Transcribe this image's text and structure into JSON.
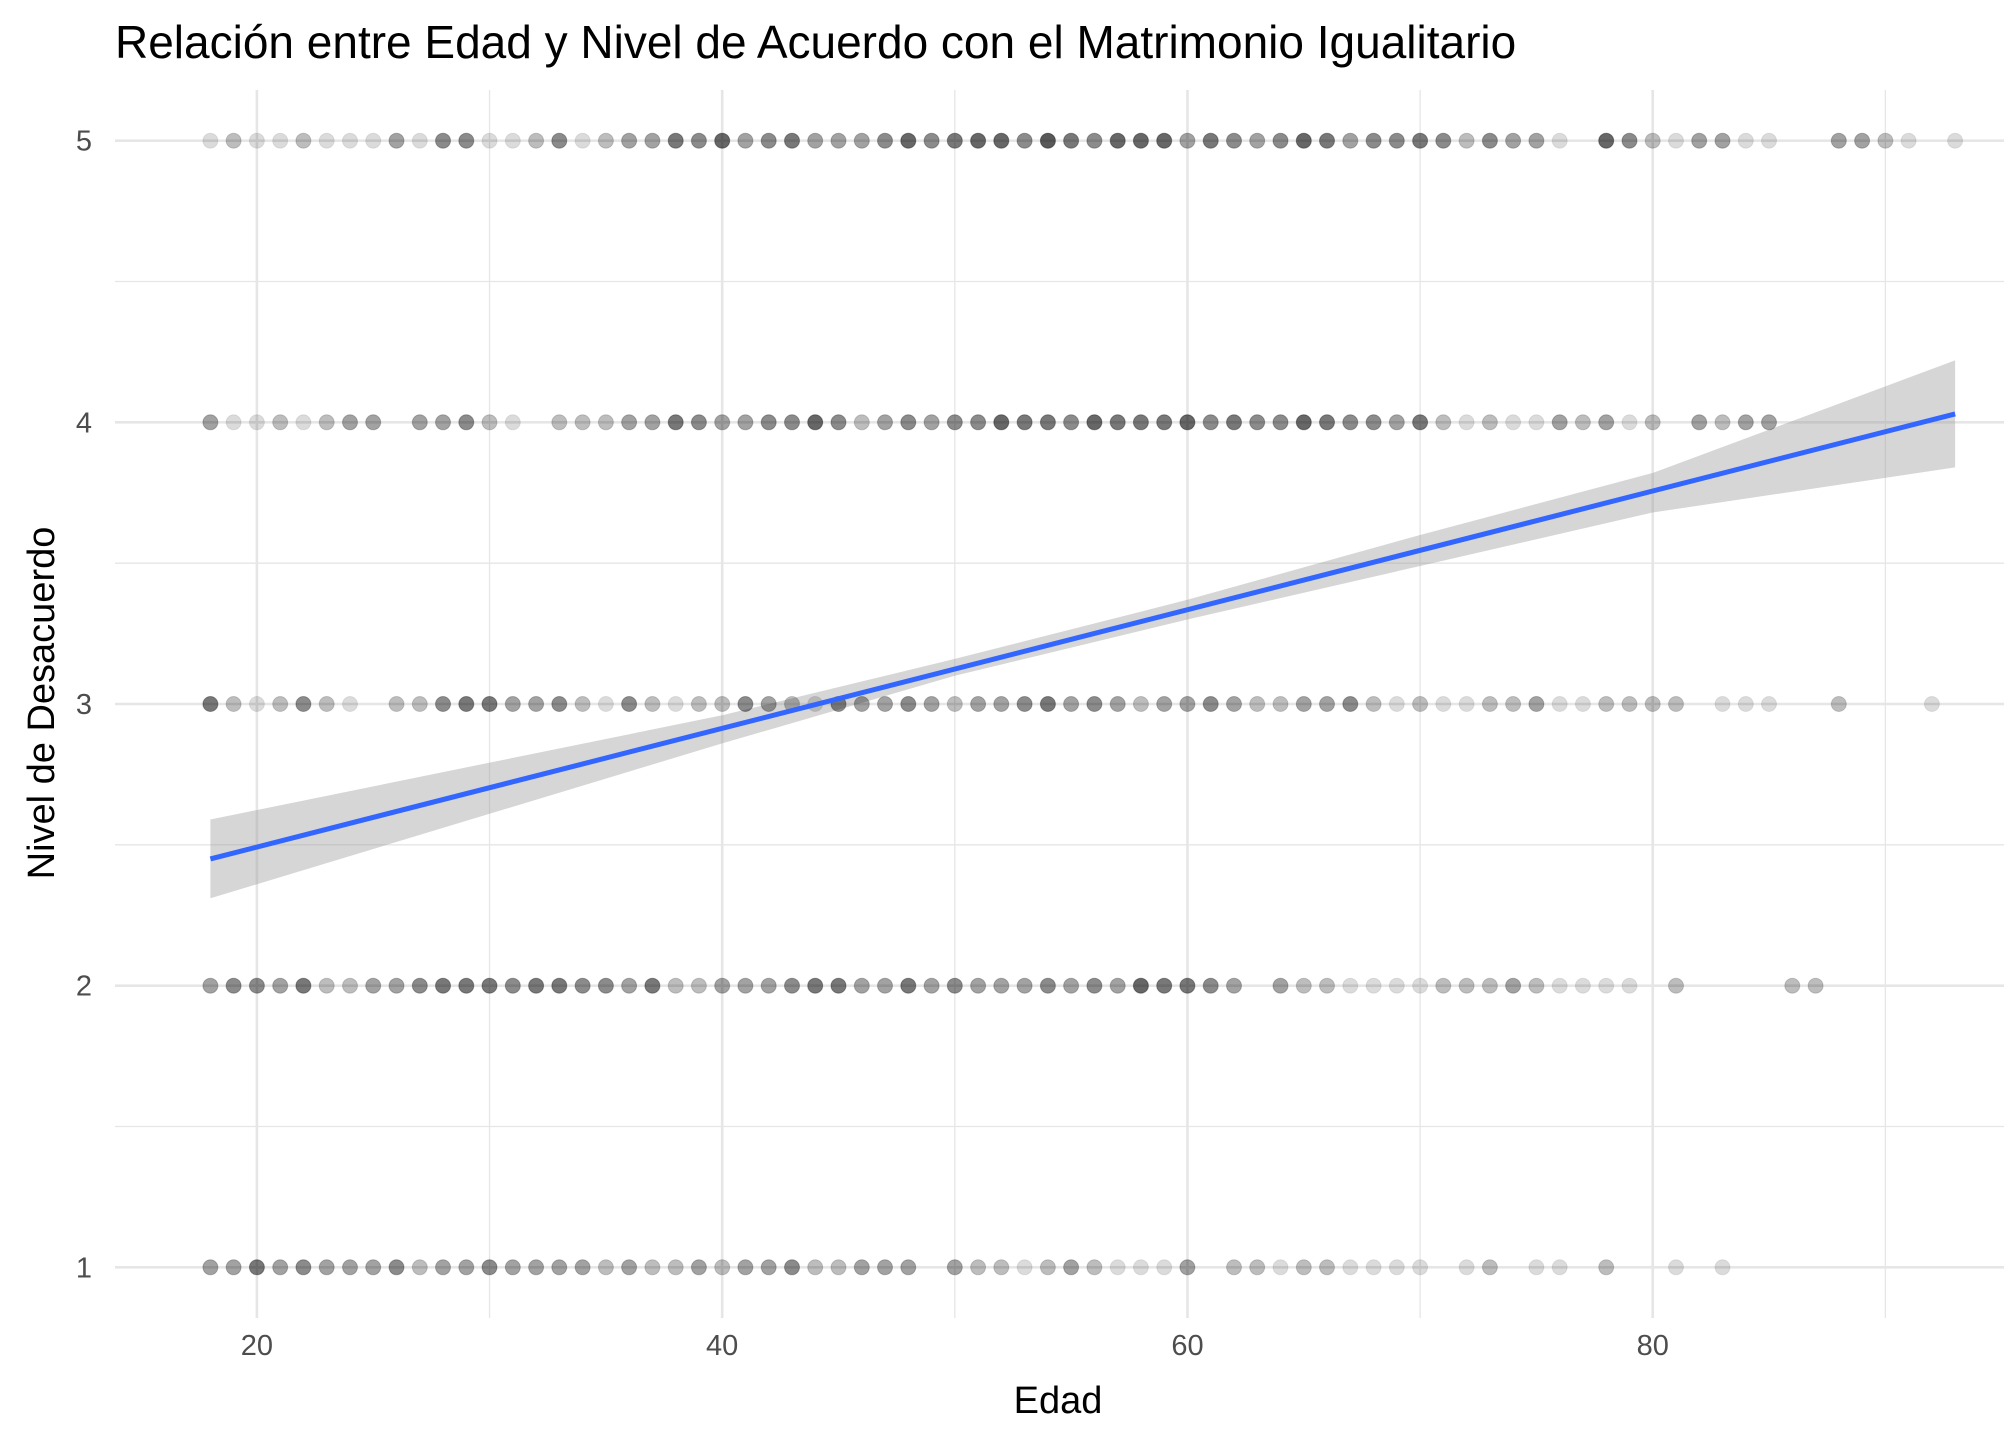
{
  "chart_data": {
    "type": "scatter",
    "title": "Relación entre Edad y Nivel de Acuerdo con el Matrimonio Igualitario",
    "xlabel": "Edad",
    "ylabel": "Nivel de Desacuerdo",
    "xlim": [
      13.9,
      95.1
    ],
    "ylim": [
      0.82,
      5.18
    ],
    "x_ticks": [
      20,
      40,
      60,
      80
    ],
    "y_ticks": [
      1,
      2,
      3,
      4,
      5
    ],
    "grid": true,
    "legend": "none",
    "colors": {
      "point": "#000000",
      "trend": "#3366ff",
      "band": "#999999",
      "grid": "#e6e6e6",
      "tick_text": "#4d4d4d"
    },
    "point_alpha_note": "point opacity reflects count of overlapping responses",
    "points": [
      {
        "y": 5,
        "pts": [
          [
            18,
            1
          ],
          [
            19,
            2
          ],
          [
            20,
            1
          ],
          [
            21,
            1
          ],
          [
            22,
            2
          ],
          [
            23,
            1
          ],
          [
            24,
            1
          ],
          [
            25,
            1
          ],
          [
            26,
            3
          ],
          [
            27,
            1
          ],
          [
            28,
            4
          ],
          [
            29,
            4
          ],
          [
            30,
            1
          ],
          [
            31,
            1
          ],
          [
            32,
            2
          ],
          [
            33,
            4
          ],
          [
            34,
            1
          ],
          [
            35,
            2
          ],
          [
            36,
            3
          ],
          [
            37,
            3
          ],
          [
            38,
            5
          ],
          [
            39,
            4
          ],
          [
            40,
            6
          ],
          [
            41,
            3
          ],
          [
            42,
            4
          ],
          [
            43,
            5
          ],
          [
            44,
            3
          ],
          [
            45,
            3
          ],
          [
            46,
            3
          ],
          [
            47,
            4
          ],
          [
            48,
            6
          ],
          [
            49,
            4
          ],
          [
            50,
            5
          ],
          [
            51,
            6
          ],
          [
            52,
            6
          ],
          [
            53,
            4
          ],
          [
            54,
            7
          ],
          [
            55,
            5
          ],
          [
            56,
            4
          ],
          [
            57,
            6
          ],
          [
            58,
            6
          ],
          [
            59,
            6
          ],
          [
            60,
            3
          ],
          [
            61,
            5
          ],
          [
            62,
            4
          ],
          [
            63,
            3
          ],
          [
            64,
            4
          ],
          [
            65,
            6
          ],
          [
            66,
            5
          ],
          [
            67,
            3
          ],
          [
            68,
            4
          ],
          [
            69,
            4
          ],
          [
            70,
            5
          ],
          [
            71,
            4
          ],
          [
            72,
            2
          ],
          [
            73,
            4
          ],
          [
            74,
            3
          ],
          [
            75,
            3
          ],
          [
            76,
            1
          ],
          [
            78,
            6
          ],
          [
            79,
            4
          ],
          [
            80,
            2
          ],
          [
            81,
            1
          ],
          [
            82,
            3
          ],
          [
            83,
            3
          ],
          [
            84,
            1
          ],
          [
            85,
            1
          ],
          [
            88,
            3
          ],
          [
            89,
            3
          ],
          [
            90,
            2
          ],
          [
            91,
            1
          ],
          [
            93,
            1
          ]
        ]
      },
      {
        "y": 4,
        "pts": [
          [
            18,
            3
          ],
          [
            19,
            1
          ],
          [
            20,
            1
          ],
          [
            21,
            2
          ],
          [
            22,
            1
          ],
          [
            23,
            2
          ],
          [
            24,
            3
          ],
          [
            25,
            3
          ],
          [
            27,
            3
          ],
          [
            28,
            3
          ],
          [
            29,
            4
          ],
          [
            30,
            2
          ],
          [
            31,
            1
          ],
          [
            33,
            2
          ],
          [
            34,
            2
          ],
          [
            35,
            2
          ],
          [
            36,
            3
          ],
          [
            37,
            3
          ],
          [
            38,
            5
          ],
          [
            39,
            4
          ],
          [
            40,
            3
          ],
          [
            41,
            3
          ],
          [
            42,
            4
          ],
          [
            43,
            4
          ],
          [
            44,
            6
          ],
          [
            45,
            4
          ],
          [
            46,
            2
          ],
          [
            47,
            3
          ],
          [
            48,
            4
          ],
          [
            49,
            3
          ],
          [
            50,
            4
          ],
          [
            51,
            4
          ],
          [
            52,
            6
          ],
          [
            53,
            5
          ],
          [
            54,
            5
          ],
          [
            55,
            4
          ],
          [
            56,
            6
          ],
          [
            57,
            5
          ],
          [
            58,
            5
          ],
          [
            59,
            5
          ],
          [
            60,
            6
          ],
          [
            61,
            4
          ],
          [
            62,
            5
          ],
          [
            63,
            4
          ],
          [
            64,
            4
          ],
          [
            65,
            6
          ],
          [
            66,
            5
          ],
          [
            67,
            4
          ],
          [
            68,
            4
          ],
          [
            69,
            3
          ],
          [
            70,
            5
          ],
          [
            71,
            2
          ],
          [
            72,
            1
          ],
          [
            73,
            2
          ],
          [
            74,
            1
          ],
          [
            75,
            1
          ],
          [
            76,
            3
          ],
          [
            77,
            2
          ],
          [
            78,
            3
          ],
          [
            79,
            1
          ],
          [
            80,
            2
          ],
          [
            82,
            3
          ],
          [
            83,
            2
          ],
          [
            84,
            3
          ],
          [
            85,
            3
          ]
        ]
      },
      {
        "y": 3,
        "pts": [
          [
            18,
            5
          ],
          [
            19,
            2
          ],
          [
            20,
            1
          ],
          [
            21,
            2
          ],
          [
            22,
            4
          ],
          [
            23,
            2
          ],
          [
            24,
            1
          ],
          [
            26,
            2
          ],
          [
            27,
            2
          ],
          [
            28,
            4
          ],
          [
            29,
            5
          ],
          [
            30,
            5
          ],
          [
            31,
            3
          ],
          [
            32,
            3
          ],
          [
            33,
            4
          ],
          [
            34,
            2
          ],
          [
            35,
            1
          ],
          [
            36,
            4
          ],
          [
            37,
            2
          ],
          [
            38,
            1
          ],
          [
            39,
            2
          ],
          [
            40,
            2
          ],
          [
            41,
            4
          ],
          [
            42,
            3
          ],
          [
            43,
            2
          ],
          [
            44,
            1
          ],
          [
            45,
            4
          ],
          [
            46,
            3
          ],
          [
            47,
            3
          ],
          [
            48,
            4
          ],
          [
            49,
            3
          ],
          [
            50,
            2
          ],
          [
            51,
            3
          ],
          [
            52,
            3
          ],
          [
            53,
            4
          ],
          [
            54,
            5
          ],
          [
            55,
            3
          ],
          [
            56,
            4
          ],
          [
            57,
            3
          ],
          [
            58,
            2
          ],
          [
            59,
            3
          ],
          [
            60,
            3
          ],
          [
            61,
            4
          ],
          [
            62,
            3
          ],
          [
            63,
            2
          ],
          [
            64,
            2
          ],
          [
            65,
            3
          ],
          [
            66,
            3
          ],
          [
            67,
            4
          ],
          [
            68,
            2
          ],
          [
            69,
            1
          ],
          [
            70,
            2
          ],
          [
            71,
            1
          ],
          [
            72,
            1
          ],
          [
            73,
            2
          ],
          [
            74,
            2
          ],
          [
            75,
            3
          ],
          [
            76,
            1
          ],
          [
            77,
            1
          ],
          [
            78,
            2
          ],
          [
            79,
            2
          ],
          [
            80,
            2
          ],
          [
            81,
            2
          ],
          [
            83,
            1
          ],
          [
            84,
            1
          ],
          [
            85,
            1
          ],
          [
            88,
            2
          ],
          [
            92,
            1
          ]
        ]
      },
      {
        "y": 2,
        "pts": [
          [
            18,
            3
          ],
          [
            19,
            4
          ],
          [
            20,
            4
          ],
          [
            21,
            3
          ],
          [
            22,
            5
          ],
          [
            23,
            2
          ],
          [
            24,
            2
          ],
          [
            25,
            3
          ],
          [
            26,
            3
          ],
          [
            27,
            4
          ],
          [
            28,
            5
          ],
          [
            29,
            5
          ],
          [
            30,
            5
          ],
          [
            31,
            4
          ],
          [
            32,
            5
          ],
          [
            33,
            5
          ],
          [
            34,
            4
          ],
          [
            35,
            4
          ],
          [
            36,
            3
          ],
          [
            37,
            5
          ],
          [
            38,
            2
          ],
          [
            39,
            2
          ],
          [
            40,
            3
          ],
          [
            41,
            3
          ],
          [
            42,
            3
          ],
          [
            43,
            4
          ],
          [
            44,
            5
          ],
          [
            45,
            5
          ],
          [
            46,
            3
          ],
          [
            47,
            3
          ],
          [
            48,
            5
          ],
          [
            49,
            3
          ],
          [
            50,
            4
          ],
          [
            51,
            3
          ],
          [
            52,
            3
          ],
          [
            53,
            3
          ],
          [
            54,
            4
          ],
          [
            55,
            3
          ],
          [
            56,
            4
          ],
          [
            57,
            3
          ],
          [
            58,
            6
          ],
          [
            59,
            5
          ],
          [
            60,
            5
          ],
          [
            61,
            4
          ],
          [
            62,
            3
          ],
          [
            64,
            3
          ],
          [
            65,
            2
          ],
          [
            66,
            2
          ],
          [
            67,
            1
          ],
          [
            68,
            1
          ],
          [
            69,
            1
          ],
          [
            70,
            1
          ],
          [
            71,
            2
          ],
          [
            72,
            2
          ],
          [
            73,
            2
          ],
          [
            74,
            3
          ],
          [
            75,
            2
          ],
          [
            76,
            1
          ],
          [
            77,
            1
          ],
          [
            78,
            1
          ],
          [
            79,
            1
          ],
          [
            81,
            2
          ],
          [
            86,
            2
          ],
          [
            87,
            2
          ]
        ]
      },
      {
        "y": 1,
        "pts": [
          [
            18,
            3
          ],
          [
            19,
            3
          ],
          [
            20,
            5
          ],
          [
            21,
            3
          ],
          [
            22,
            4
          ],
          [
            23,
            3
          ],
          [
            24,
            3
          ],
          [
            25,
            3
          ],
          [
            26,
            4
          ],
          [
            27,
            2
          ],
          [
            28,
            3
          ],
          [
            29,
            3
          ],
          [
            30,
            4
          ],
          [
            31,
            3
          ],
          [
            32,
            3
          ],
          [
            33,
            3
          ],
          [
            34,
            3
          ],
          [
            35,
            2
          ],
          [
            36,
            3
          ],
          [
            37,
            2
          ],
          [
            38,
            2
          ],
          [
            39,
            3
          ],
          [
            40,
            2
          ],
          [
            41,
            3
          ],
          [
            42,
            3
          ],
          [
            43,
            4
          ],
          [
            44,
            2
          ],
          [
            45,
            2
          ],
          [
            46,
            3
          ],
          [
            47,
            3
          ],
          [
            48,
            3
          ],
          [
            50,
            3
          ],
          [
            51,
            2
          ],
          [
            52,
            2
          ],
          [
            53,
            1
          ],
          [
            54,
            2
          ],
          [
            55,
            3
          ],
          [
            56,
            2
          ],
          [
            57,
            1
          ],
          [
            58,
            1
          ],
          [
            59,
            1
          ],
          [
            60,
            3
          ],
          [
            62,
            2
          ],
          [
            63,
            2
          ],
          [
            64,
            1
          ],
          [
            65,
            2
          ],
          [
            66,
            2
          ],
          [
            67,
            1
          ],
          [
            68,
            1
          ],
          [
            69,
            1
          ],
          [
            70,
            1
          ],
          [
            72,
            1
          ],
          [
            73,
            2
          ],
          [
            75,
            1
          ],
          [
            76,
            1
          ],
          [
            78,
            2
          ],
          [
            81,
            1
          ],
          [
            83,
            1
          ]
        ]
      }
    ],
    "trend": {
      "x0": 18,
      "y0": 2.45,
      "x1": 93,
      "y1": 4.03
    },
    "band": {
      "lower": [
        [
          18,
          2.31
        ],
        [
          40,
          2.86
        ],
        [
          50,
          3.1
        ],
        [
          60,
          3.3
        ],
        [
          70,
          3.49
        ],
        [
          80,
          3.68
        ],
        [
          93,
          3.84
        ]
      ],
      "upper": [
        [
          18,
          2.59
        ],
        [
          40,
          2.96
        ],
        [
          50,
          3.16
        ],
        [
          60,
          3.37
        ],
        [
          70,
          3.6
        ],
        [
          80,
          3.82
        ],
        [
          93,
          4.22
        ]
      ]
    }
  }
}
